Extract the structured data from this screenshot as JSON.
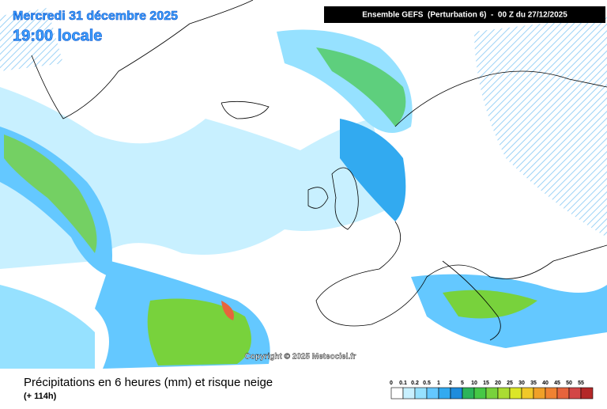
{
  "header": {
    "date": "Mercredi 31 décembre 2025",
    "time": "19:00 locale",
    "run": "Ensemble GEFS  (Perturbation 6)  -  00 Z du 27/12/2025"
  },
  "copyright": "Copyright © 2025 Meteociel.fr",
  "footer": {
    "title": "Précipitations en 6 heures (mm) et risque neige",
    "lead": "(+ 114h)"
  },
  "scale": {
    "labels": [
      0,
      0.1,
      0.2,
      0.5,
      1,
      2,
      5,
      10,
      15,
      20,
      25,
      30,
      35,
      40,
      45,
      50,
      55
    ],
    "colors": [
      "#ffffff",
      "#c8f0ff",
      "#96e1ff",
      "#64c8ff",
      "#32aaf0",
      "#1e8cdc",
      "#2cb45a",
      "#46c846",
      "#78d23c",
      "#aadc32",
      "#dce628",
      "#f0c828",
      "#f0a028",
      "#f08232",
      "#e6643c",
      "#d24646",
      "#b42828"
    ]
  }
}
